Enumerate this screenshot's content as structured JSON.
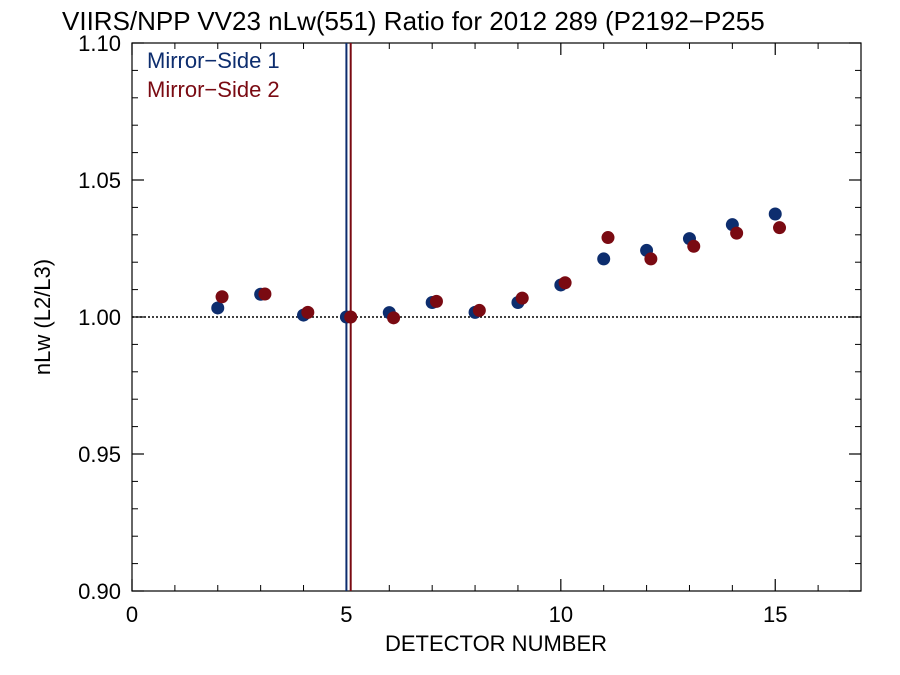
{
  "chart_data": {
    "type": "scatter",
    "title": "VIIRS/NPP VV23 nLw(551) Ratio for 2012 289 (P2192−P255",
    "xlabel": "DETECTOR NUMBER",
    "ylabel": "nLw (L2/L3)",
    "xlim": [
      0,
      17
    ],
    "ylim": [
      0.9,
      1.1
    ],
    "x_ticks": [
      0,
      5,
      10,
      15
    ],
    "x_tick_labels": [
      "0",
      "5",
      "10",
      "15"
    ],
    "y_ticks": [
      0.9,
      0.95,
      1.0,
      1.05,
      1.1
    ],
    "y_tick_labels": [
      "0.90",
      "0.95",
      "1.00",
      "1.05",
      "1.10"
    ],
    "grid": false,
    "reference_line_y": 1.0,
    "vertical_lines_x": [
      5.0,
      5.1
    ],
    "legend_position": "top-left",
    "series": [
      {
        "name": "Mirror−Side 1",
        "color": "#0d2d6e",
        "x": [
          2,
          3,
          4,
          5,
          6,
          7,
          8,
          9,
          10,
          11,
          12,
          13,
          14,
          15
        ],
        "y": [
          1.0033,
          1.0083,
          1.0007,
          1.0,
          1.0016,
          1.0053,
          1.0017,
          1.0053,
          1.0117,
          1.0212,
          1.0243,
          1.0286,
          1.0337,
          1.0376
        ]
      },
      {
        "name": "Mirror−Side 2",
        "color": "#7a0a12",
        "x": [
          2.1,
          3.1,
          4.1,
          5.1,
          6.1,
          7.1,
          8.1,
          9.1,
          10.1,
          11.1,
          12.1,
          13.1,
          14.1,
          15.1
        ],
        "y": [
          1.0074,
          1.0084,
          1.0017,
          1.0,
          0.9997,
          1.0057,
          1.0024,
          1.0069,
          1.0125,
          1.029,
          1.0212,
          1.0258,
          1.0306,
          1.0326
        ]
      }
    ]
  }
}
